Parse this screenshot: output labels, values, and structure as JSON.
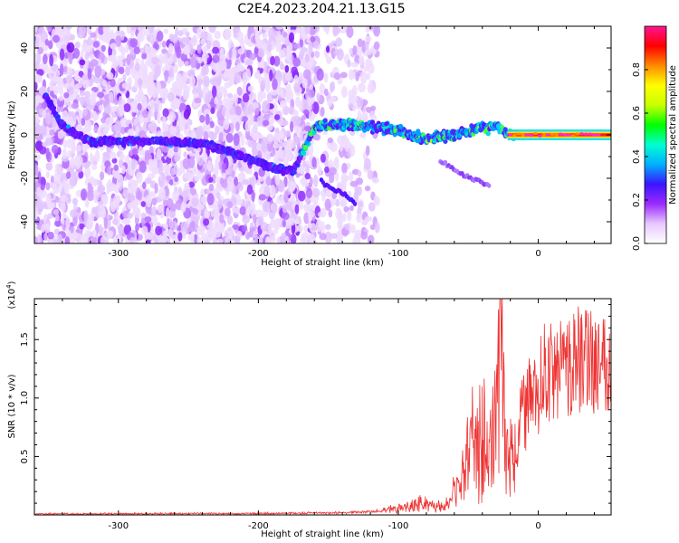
{
  "title": "C2E4.2023.204.21.13.G15",
  "chart_data": [
    {
      "type": "heatmap",
      "xlabel": "Height of straight line (km)",
      "ylabel": "Frequency (Hz)",
      "xlim": [
        -360,
        52
      ],
      "ylim": [
        -50,
        50
      ],
      "xticks": [
        -300,
        -200,
        -100,
        0
      ],
      "yticks": [
        -40,
        -20,
        0,
        20,
        40
      ],
      "colorbar": {
        "label": "Normalized spectral amplitude",
        "range": [
          0,
          1
        ],
        "ticks": [
          "0.0",
          "0.2",
          "0.4",
          "0.6",
          "0.8"
        ],
        "colors": [
          "#ffffff",
          "#e7c8ff",
          "#9b2bff",
          "#3a14ff",
          "#00b0ff",
          "#00ffd0",
          "#00ff00",
          "#c8ff00",
          "#ffff00",
          "#ff8c00",
          "#ff0000",
          "#ff1493"
        ]
      },
      "main_trace": [
        {
          "x": -352,
          "f": 18
        },
        {
          "x": -340,
          "f": 4
        },
        {
          "x": -320,
          "f": -3
        },
        {
          "x": -300,
          "f": -3
        },
        {
          "x": -270,
          "f": -3
        },
        {
          "x": -240,
          "f": -4
        },
        {
          "x": -220,
          "f": -8
        },
        {
          "x": -190,
          "f": -15
        },
        {
          "x": -175,
          "f": -17
        },
        {
          "x": -160,
          "f": 4
        },
        {
          "x": -140,
          "f": 5
        },
        {
          "x": -120,
          "f": 4
        },
        {
          "x": -100,
          "f": 2
        },
        {
          "x": -80,
          "f": -2
        },
        {
          "x": -60,
          "f": 0
        },
        {
          "x": -40,
          "f": 3
        },
        {
          "x": -30,
          "f": 4
        },
        {
          "x": -20,
          "f": 0
        },
        {
          "x": 0,
          "f": 0
        },
        {
          "x": 20,
          "f": 0
        },
        {
          "x": 52,
          "f": 0
        }
      ],
      "secondary_trace": [
        {
          "x": -155,
          "f": -22
        },
        {
          "x": -140,
          "f": -27
        },
        {
          "x": -130,
          "f": -32
        }
      ],
      "dispersed_trace": [
        {
          "x": -70,
          "f": -12
        },
        {
          "x": -55,
          "f": -18
        },
        {
          "x": -35,
          "f": -23
        }
      ]
    },
    {
      "type": "line",
      "xlabel": "Height of straight line (km)",
      "ylabel": "SNR (10 * v/v)",
      "y_multiplier_label": "(x10",
      "y_multiplier_exp": "4",
      "y_multiplier_close": ")",
      "xlim": [
        -360,
        52
      ],
      "ylim": [
        0,
        1.85
      ],
      "xticks": [
        -300,
        -200,
        -100,
        0
      ],
      "yticks": [
        0.5,
        1.0,
        1.5
      ],
      "ytick_labels": [
        "0.5",
        "1.0",
        "1.5"
      ],
      "color": "#ee3333",
      "envelope": [
        {
          "x": -360,
          "y": 0.01
        },
        {
          "x": -200,
          "y": 0.015
        },
        {
          "x": -150,
          "y": 0.02
        },
        {
          "x": -120,
          "y": 0.03
        },
        {
          "x": -100,
          "y": 0.07
        },
        {
          "x": -85,
          "y": 0.12
        },
        {
          "x": -75,
          "y": 0.09
        },
        {
          "x": -65,
          "y": 0.1
        },
        {
          "x": -55,
          "y": 0.35
        },
        {
          "x": -47,
          "y": 0.75
        },
        {
          "x": -40,
          "y": 0.8
        },
        {
          "x": -35,
          "y": 0.6
        },
        {
          "x": -30,
          "y": 0.9
        },
        {
          "x": -27,
          "y": 1.84
        },
        {
          "x": -24,
          "y": 0.8
        },
        {
          "x": -20,
          "y": 0.55
        },
        {
          "x": -17,
          "y": 0.45
        },
        {
          "x": -12,
          "y": 1.05
        },
        {
          "x": -5,
          "y": 1.2
        },
        {
          "x": 0,
          "y": 1.32
        },
        {
          "x": 10,
          "y": 1.45
        },
        {
          "x": 25,
          "y": 1.55
        },
        {
          "x": 52,
          "y": 1.58
        }
      ]
    }
  ]
}
